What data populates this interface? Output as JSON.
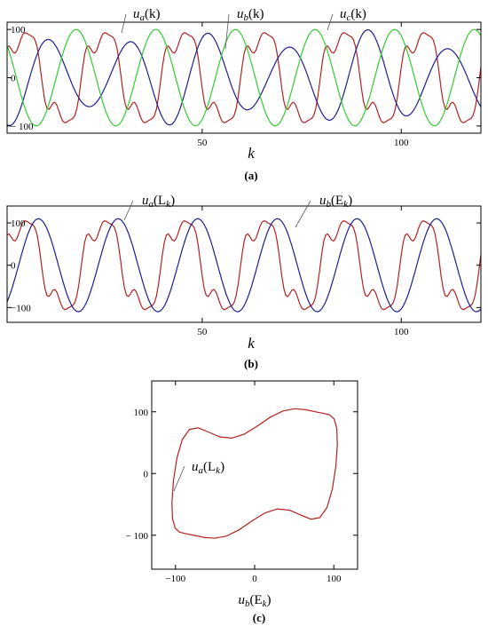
{
  "chart_data": [
    {
      "type": "line",
      "caption": "(a)",
      "xlabel": "k",
      "xlim": [
        1,
        120
      ],
      "ylim": [
        -115,
        115
      ],
      "xticks": [
        50,
        100
      ],
      "yticks": [
        100,
        0,
        -100
      ],
      "ytick_labels": [
        "100",
        "0",
        "− 100"
      ],
      "series": [
        {
          "name": "u_a(k)",
          "label_main": "u",
          "label_sub": "a",
          "label_arg": "(k)",
          "color": "#b22222",
          "kind": "distorted",
          "amplitude": 120,
          "period": 20,
          "phase_deg": 0
        },
        {
          "name": "u_b(k)",
          "label_main": "u",
          "label_sub": "b",
          "label_arg": "(k)",
          "color": "#1f1f8f",
          "kind": "sine_varying",
          "amplitude_max": 100,
          "amplitude_min": 60,
          "period": 20,
          "phase_deg": 240
        },
        {
          "name": "u_c(k)",
          "label_main": "u",
          "label_sub": "c",
          "label_arg": "(k)",
          "color": "#33cc33",
          "kind": "sine",
          "amplitude": 100,
          "period": 20,
          "phase_deg": 120
        }
      ]
    },
    {
      "type": "line",
      "caption": "(b)",
      "xlabel": "k",
      "xlim": [
        1,
        120
      ],
      "ylim": [
        -135,
        140
      ],
      "xticks": [
        50,
        100
      ],
      "yticks": [
        100,
        0,
        -100
      ],
      "ytick_labels": [
        "100",
        "0",
        "−100"
      ],
      "series": [
        {
          "name": "u_a(L_k)",
          "label_main": "u",
          "label_sub": "a",
          "label_arg": "(L",
          "label_sub2": "k",
          "label_end": ")",
          "color": "#b22222",
          "kind": "distorted",
          "amplitude": 135,
          "period": 20,
          "phase_deg": 0
        },
        {
          "name": "u_b(E_k)",
          "label_main": "u",
          "label_sub": "b",
          "label_arg": "(E",
          "label_sub2": "k",
          "label_end": ")",
          "color": "#1f1f8f",
          "kind": "sine",
          "amplitude": 110,
          "period": 20,
          "phase_deg": 290
        }
      ]
    },
    {
      "type": "line",
      "caption": "(c)",
      "xlabel_main": "u",
      "xlabel_sub": "b",
      "xlabel_arg": "(E",
      "xlabel_sub2": "k",
      "xlabel_end": ")",
      "xlim": [
        -130,
        130
      ],
      "ylim": [
        -155,
        150
      ],
      "xticks": [
        -100,
        0,
        100
      ],
      "xtick_labels": [
        "−100",
        "0",
        "100"
      ],
      "yticks": [
        100,
        0,
        -100
      ],
      "ytick_labels": [
        "100",
        "0",
        "− 100"
      ],
      "series": [
        {
          "name": "u_a(L_k)",
          "label_main": "u",
          "label_sub": "a",
          "label_arg": "(L",
          "label_sub2": "k",
          "label_end": ")",
          "color": "#b22222",
          "kind": "lissajous"
        }
      ]
    }
  ]
}
